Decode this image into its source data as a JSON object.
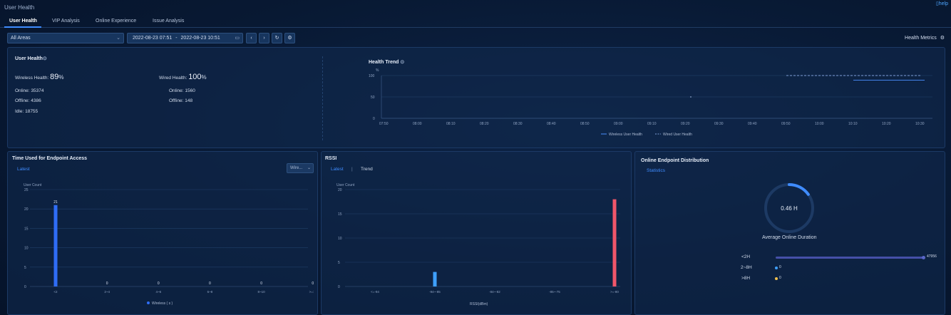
{
  "app_title": "User Health",
  "help_label": "help",
  "tabs": [
    {
      "label": "User Health"
    },
    {
      "label": "VIP Analysis"
    },
    {
      "label": "Online Experience"
    },
    {
      "label": "Issue Analysis"
    }
  ],
  "filters": {
    "area": "All Areas",
    "date_start": "2022-08-23 07:51",
    "date_sep": "-",
    "date_end": "2022-08-23 10:51",
    "health_metrics_label": "Health Metrics"
  },
  "user_health": {
    "title": "User Health",
    "wireless": {
      "label": "Wireless Health:",
      "value": "89",
      "unit": "%",
      "online": "Online: 35374",
      "offline": "Offline: 4386",
      "idle": "Idle: 18755"
    },
    "wired": {
      "label": "Wired Health:",
      "value": "100",
      "unit": "%",
      "online": "Online: 1560",
      "offline": "Offline: 148"
    }
  },
  "health_trend": {
    "title": "Health Trend",
    "y_unit": "%",
    "y_ticks": [
      "100",
      "50",
      "0"
    ],
    "x_ticks": [
      "07:50",
      "08:00",
      "08:10",
      "08:20",
      "08:30",
      "08:40",
      "08:50",
      "09:00",
      "09:10",
      "09:20",
      "09:30",
      "09:40",
      "09:50",
      "10:00",
      "10:10",
      "10:20",
      "10:30"
    ],
    "legend": [
      "Wireless User Health",
      "Wired User Health"
    ]
  },
  "endpoint_access": {
    "title": "Time Used for Endpoint Access",
    "sub_tab": "Latest",
    "dropdown": "Wire...",
    "y_label": "User Count",
    "y_ticks": [
      "25",
      "20",
      "15",
      "10",
      "5",
      "0"
    ],
    "legend": "Wireless ( s )"
  },
  "rssi": {
    "title": "RSSI",
    "sub_tabs": [
      "Latest",
      "|",
      "Trend"
    ],
    "y_label": "User Count",
    "y_ticks": [
      "20",
      "15",
      "10",
      "5",
      "0"
    ],
    "x_axis_label": "RSSI(dBm)"
  },
  "distribution": {
    "title": "Online Endpoint Distribution",
    "sub_tab": "Statistics",
    "gauge_value": "0.46 H",
    "gauge_label": "Average Online Duration",
    "rows": [
      {
        "label": "<2H",
        "value": "47956"
      },
      {
        "label": "2~8H",
        "value": "0"
      },
      {
        "label": ">8H",
        "value": "0"
      }
    ]
  },
  "chart_data": [
    {
      "type": "line",
      "title": "Health Trend",
      "ylabel": "%",
      "ylim": [
        0,
        100
      ],
      "x": [
        "07:50",
        "08:00",
        "08:10",
        "08:20",
        "08:30",
        "08:40",
        "08:50",
        "09:00",
        "09:10",
        "09:20",
        "09:30",
        "09:40",
        "09:50",
        "10:00",
        "10:10",
        "10:20",
        "10:30"
      ],
      "series": [
        {
          "name": "Wireless User Health",
          "points": [
            [
              "10:10",
              89
            ],
            [
              "10:30",
              89
            ]
          ],
          "color": "#4a90ff"
        },
        {
          "name": "Wired User Health",
          "points": [
            [
              "09:50",
              100
            ],
            [
              "10:30",
              100
            ]
          ],
          "color": "#7f9fd8"
        }
      ],
      "legend": "bottom-right"
    },
    {
      "type": "bar",
      "title": "Time Used for Endpoint Access",
      "ylabel": "User Count",
      "ylim": [
        0,
        25
      ],
      "categories": [
        "<2",
        "2~4",
        "4~6",
        "6~8",
        "8~10",
        ">=10"
      ],
      "series": [
        {
          "name": "Wireless ( s )",
          "values": [
            21,
            0,
            0,
            0,
            0,
            0
          ],
          "color": "#2f6df6"
        }
      ]
    },
    {
      "type": "bar",
      "title": "RSSI",
      "ylabel": "User Count",
      "xlabel": "RSSI(dBm)",
      "ylim": [
        0,
        20
      ],
      "categories": [
        "<=-94",
        "-94~-85",
        "-84~-82",
        "-85~-75",
        ">=-80"
      ],
      "values": [
        0,
        3,
        0,
        0,
        18
      ],
      "colors": [
        "#3ea0ff",
        "#3ea0ff",
        "#3ea0ff",
        "#3ea0ff",
        "#f0566a"
      ]
    }
  ]
}
